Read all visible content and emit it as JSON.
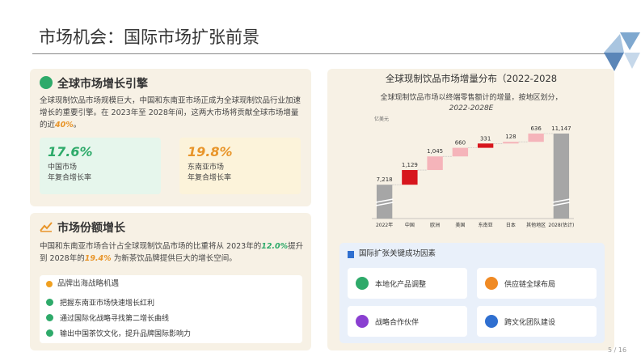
{
  "header": {
    "title": "市场机会：国际市场扩张前景",
    "page": "5 / 16"
  },
  "engine": {
    "title": "全球市场增长引擎",
    "body": [
      "全球现制饮品市场规模巨大，中国和东南亚市场正成为全球现制饮品行业加速增长的重要引擎。在 2023年至 2028年间，这两大市场将贡献全球市场增量的近",
      "40%",
      "。"
    ],
    "stats": [
      {
        "value": "17.6%",
        "label": [
          "中国市场",
          "年复合增长率"
        ]
      },
      {
        "value": "19.8%",
        "label": [
          "东南亚市场",
          "年复合增长率"
        ]
      }
    ]
  },
  "share": {
    "title": "市场份额增长",
    "body": [
      "中国和东南亚市场合计占全球现制饮品市场的比重将从 2023年的",
      "12.0%",
      "提升到 2028年的",
      "19.4%",
      "为新茶饮品牌提供巨大的增长空间。"
    ],
    "opportunity": {
      "title": "品牌出海战略机遇",
      "items": [
        "把握东南亚市场快速增长红利",
        "通过国际化战略寻找第二增长曲线",
        "输出中国茶饮文化，提升品牌国际影响力"
      ]
    }
  },
  "chart_data": {
    "type": "waterfall",
    "title": "全球现制饮品市场增量分布（2022-2028",
    "subtitle": [
      "全球现制饮品市场以终端零售额计的增量，按地区划分，",
      "2022-2028E"
    ],
    "unit": "亿美元",
    "categories": [
      "2022年",
      "中国",
      "欧洲",
      "美国",
      "东南亚",
      "日本",
      "其他地区",
      "2028(估计)"
    ],
    "values": [
      7218,
      1129,
      1045,
      660,
      331,
      128,
      636,
      11147
    ],
    "value_labels": [
      "7,218",
      "1,129",
      "1,045",
      "660",
      "331",
      "128",
      "636",
      "11,147"
    ],
    "colors": [
      "#a6a6a6",
      "#d7161d",
      "#f5b4ba",
      "#f5b4ba",
      "#d7161d",
      "#f5b4ba",
      "#f5b4ba",
      "#a6a6a6"
    ],
    "totals": [
      true,
      false,
      false,
      false,
      false,
      false,
      false,
      true
    ]
  },
  "factors": {
    "title": "国际扩张关键成功因素",
    "items": [
      "本地化产品调整",
      "供应链全球布局",
      "战略合作伙伴",
      "跨文化团队建设"
    ]
  }
}
